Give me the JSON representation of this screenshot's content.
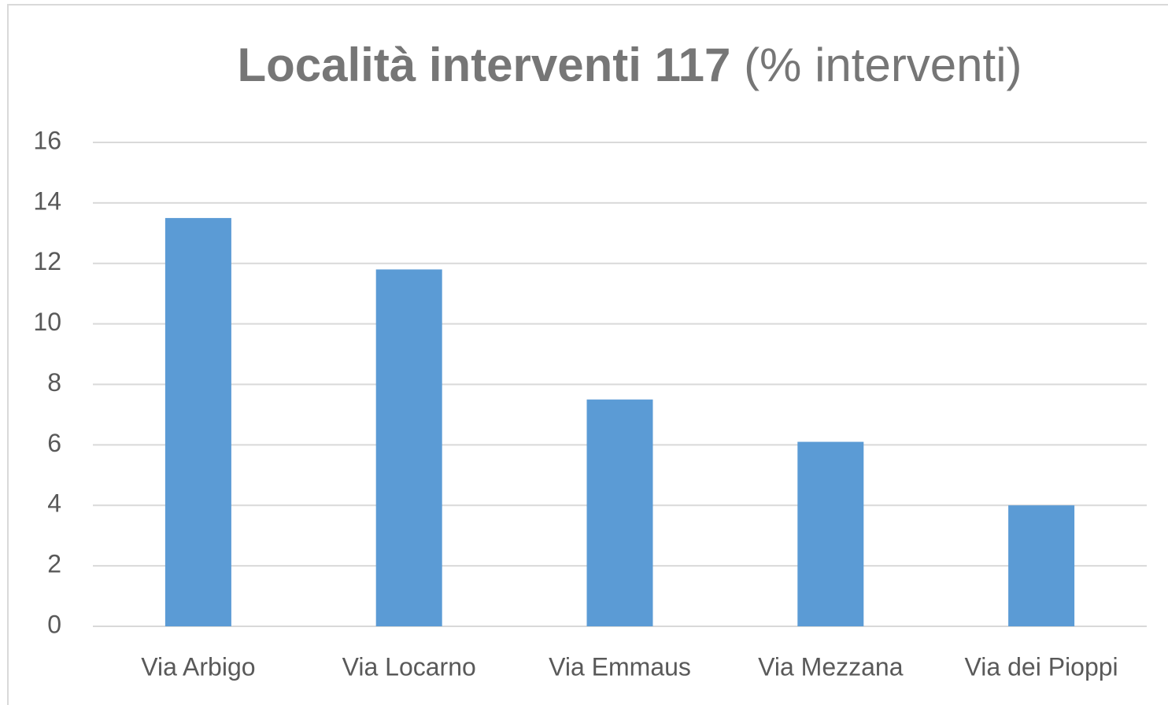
{
  "chart_data": {
    "type": "bar",
    "title": "Località interventi 117",
    "subtitle": "(% interventi)",
    "categories": [
      "Via Arbigo",
      "Via Locarno",
      "Via Emmaus",
      "Via Mezzana",
      "Via dei Pioppi"
    ],
    "values": [
      13.5,
      11.8,
      7.5,
      6.1,
      4.0
    ],
    "color": "#5b9bd5",
    "ylim": [
      0,
      16
    ],
    "yticks": [
      0,
      2,
      4,
      6,
      8,
      10,
      12,
      14,
      16
    ],
    "grid": true
  }
}
